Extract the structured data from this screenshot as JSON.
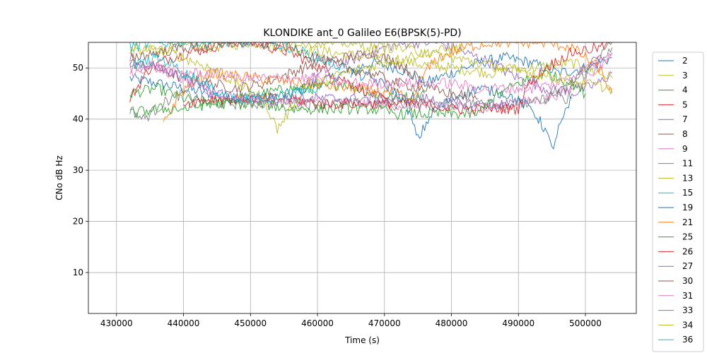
{
  "chart_data": {
    "type": "line",
    "title": "KLONDIKE ant_0 Galileo E6(BPSK(5)-PD)",
    "xlabel": "Time (s)",
    "ylabel": "CNo dB Hz",
    "xlim": [
      425800,
      507600
    ],
    "ylim": [
      2,
      55
    ],
    "grid": true,
    "legend_position": "right",
    "xticks": [
      430000,
      440000,
      450000,
      460000,
      470000,
      480000,
      490000,
      500000
    ],
    "xtick_labels": [
      "430000",
      "440000",
      "450000",
      "460000",
      "470000",
      "480000",
      "490000",
      "500000"
    ],
    "yticks": [
      10,
      20,
      30,
      40,
      50
    ],
    "ytick_labels": [
      "10",
      "20",
      "30",
      "40",
      "50"
    ],
    "series": [
      {
        "name": "2",
        "color": "#1f77b4",
        "x": [
          432000,
          436000,
          440000,
          444000,
          448000,
          452000,
          456000,
          460000,
          464000,
          468000,
          472000,
          476000,
          480000,
          484000,
          488000,
          492000,
          496000,
          500000,
          504000
        ],
        "values": [
          48,
          47,
          46,
          45,
          44,
          44,
          45,
          47,
          49,
          51,
          50,
          47,
          49,
          51,
          52,
          51,
          49,
          50,
          52
        ]
      },
      {
        "name": "3",
        "color": "#bcbd22",
        "x": [
          432000,
          438000,
          444000,
          450000,
          456000,
          462000,
          468000,
          474000,
          480000,
          486000,
          492000,
          498000,
          504000
        ],
        "values": [
          53,
          54,
          54,
          55,
          54,
          53,
          52,
          51,
          50,
          49,
          50,
          51,
          48
        ]
      },
      {
        "name": "4",
        "color": "#2ca02c",
        "x": [
          432000,
          436000,
          440000,
          444000,
          448000,
          452000,
          456000,
          460000,
          464000,
          468000,
          472000,
          476000
        ],
        "values": [
          45,
          46,
          44,
          43,
          44,
          45,
          46,
          46,
          47,
          45,
          44,
          45
        ]
      },
      {
        "name": "5",
        "color": "#d62728",
        "x": [
          432000,
          435000,
          438000,
          441000,
          444000,
          447000,
          450000,
          453000,
          456000,
          459000,
          462000,
          465000,
          468000,
          471000
        ],
        "values": [
          44,
          50,
          52,
          53,
          54,
          55,
          55,
          54,
          53,
          51,
          49,
          47,
          45,
          43
        ]
      },
      {
        "name": "7",
        "color": "#9467bd",
        "x": [
          458000,
          462000,
          466000,
          470000,
          474000,
          478000,
          482000,
          486000,
          490000,
          494000,
          498000,
          502000,
          504000
        ],
        "values": [
          47,
          50,
          52,
          54,
          55,
          55,
          53,
          51,
          48,
          46,
          45,
          47,
          49
        ]
      },
      {
        "name": "8",
        "color": "#8c564b",
        "x": [
          432000,
          436000,
          440000,
          444000,
          448000,
          452000,
          456000,
          460000,
          464000,
          468000,
          472000,
          476000
        ],
        "values": [
          51,
          50,
          48,
          47,
          46,
          47,
          49,
          51,
          52,
          53,
          51,
          47
        ]
      },
      {
        "name": "9",
        "color": "#e377c2",
        "x": [
          432000,
          435000,
          438000,
          441000,
          444000,
          447000,
          486000,
          490000,
          494000,
          498000,
          502000,
          504000
        ],
        "values": [
          49,
          51,
          49,
          47,
          45,
          44,
          42,
          43,
          44,
          46,
          50,
          53
        ]
      },
      {
        "name": "11",
        "color": "#7f7f7f",
        "x": [
          432000,
          433000,
          434000,
          436000,
          438000,
          440000,
          442000,
          444000,
          492000,
          494000,
          496000,
          498000,
          500000,
          502000,
          504000
        ],
        "values": [
          42,
          41,
          40,
          42,
          44,
          45,
          44,
          43,
          43,
          44,
          45,
          47,
          49,
          52,
          55
        ]
      },
      {
        "name": "13",
        "color": "#bcbd22",
        "x": [
          432000,
          438000,
          444000,
          448000,
          452000,
          454000,
          458000,
          464000,
          470000,
          476000,
          482000
        ],
        "values": [
          54,
          53,
          50,
          47,
          44,
          38,
          46,
          49,
          51,
          53,
          54
        ]
      },
      {
        "name": "15",
        "color": "#17becf",
        "x": [
          432000,
          436000,
          440000,
          444000,
          448000,
          452000,
          456000,
          460000,
          464000
        ],
        "values": [
          54,
          55,
          55,
          55,
          55,
          55,
          54,
          52,
          50
        ]
      },
      {
        "name": "19",
        "color": "#1f77b4",
        "x": [
          465000,
          468000,
          471000,
          473000,
          475000,
          477000,
          480000,
          484000,
          488000,
          492000,
          494000,
          495000,
          496000,
          498000
        ],
        "values": [
          49,
          48,
          46,
          44,
          36,
          41,
          44,
          46,
          45,
          42,
          38,
          34,
          38,
          44
        ]
      },
      {
        "name": "21",
        "color": "#ff7f0e",
        "x": [
          437000,
          439000,
          441000,
          444000,
          472000,
          474000,
          476000,
          478000,
          482000,
          486000,
          490000,
          494000,
          498000,
          502000,
          504000
        ],
        "values": [
          39,
          44,
          47,
          49,
          45,
          43,
          49,
          52,
          54,
          55,
          55,
          55,
          54,
          50,
          45
        ]
      },
      {
        "name": "25",
        "color": "#2ca02c",
        "x": [
          432000,
          436000,
          440000,
          444000,
          448000,
          452000,
          456000,
          460000,
          464000,
          468000,
          472000,
          476000,
          480000,
          484000,
          486000,
          490000,
          494000,
          498000,
          500000
        ],
        "values": [
          41,
          42,
          42,
          43,
          43,
          43,
          42,
          42,
          42,
          42,
          41,
          41,
          41,
          41,
          44,
          47,
          49,
          47,
          45
        ]
      },
      {
        "name": "26",
        "color": "#d62728",
        "x": [
          440000,
          444000,
          448000,
          452000,
          456000,
          460000,
          464000,
          468000,
          472000,
          476000,
          480000,
          484000,
          488000,
          490000,
          491000,
          494000,
          498000,
          502000,
          504000
        ],
        "values": [
          43,
          44,
          44,
          44,
          44,
          43,
          43,
          43,
          43,
          43,
          42,
          42,
          42,
          42,
          46,
          50,
          53,
          54,
          55
        ]
      },
      {
        "name": "27",
        "color": "#9467bd",
        "x": [
          432000,
          436000,
          440000,
          444000,
          448000,
          452000,
          456000,
          460000,
          464000,
          468000,
          472000,
          476000,
          480000,
          484000,
          488000,
          490000
        ],
        "values": [
          52,
          50,
          48,
          46,
          44,
          44,
          44,
          44,
          44,
          44,
          44,
          44,
          43,
          43,
          43,
          43
        ]
      },
      {
        "name": "30",
        "color": "#8c564b",
        "x": [
          432000,
          436000,
          440000,
          444000,
          448000,
          452000,
          456000,
          460000,
          464000,
          468000,
          472000,
          476000,
          480000,
          484000
        ],
        "values": [
          52,
          53,
          54,
          54,
          55,
          55,
          54,
          52,
          50,
          49,
          47,
          46,
          45,
          44
        ]
      },
      {
        "name": "31",
        "color": "#e377c2",
        "x": [
          432000,
          436000,
          440000,
          444000,
          448000,
          452000,
          456000,
          460000,
          464000,
          468000,
          472000,
          476000,
          480000,
          484000,
          488000,
          492000,
          496000,
          500000,
          504000
        ],
        "values": [
          50,
          50,
          49,
          49,
          48,
          48,
          48,
          48,
          47,
          47,
          47,
          47,
          47,
          46,
          46,
          46,
          47,
          50,
          53
        ]
      },
      {
        "name": "33",
        "color": "#7f7f7f",
        "x": [
          494000,
          496000,
          497000,
          498000,
          500000,
          502000,
          504000
        ],
        "values": [
          44,
          46,
          43,
          47,
          50,
          52,
          54
        ]
      },
      {
        "name": "34",
        "color": "#bcbd22",
        "x": [
          456000,
          460000,
          464000,
          468000,
          472000,
          476000,
          480000,
          484000,
          488000,
          492000,
          496000,
          500000,
          504000
        ],
        "values": [
          55,
          55,
          55,
          54,
          54,
          53,
          52,
          51,
          50,
          49,
          48,
          47,
          46
        ]
      },
      {
        "name": "36",
        "color": "#17becf",
        "x": [
          432000,
          436000,
          438000,
          440000,
          442000,
          444000,
          446000,
          448000,
          452000,
          456000,
          460000
        ],
        "values": [
          50,
          52,
          51,
          49,
          48,
          46,
          45,
          44,
          44,
          45,
          46
        ]
      }
    ]
  }
}
